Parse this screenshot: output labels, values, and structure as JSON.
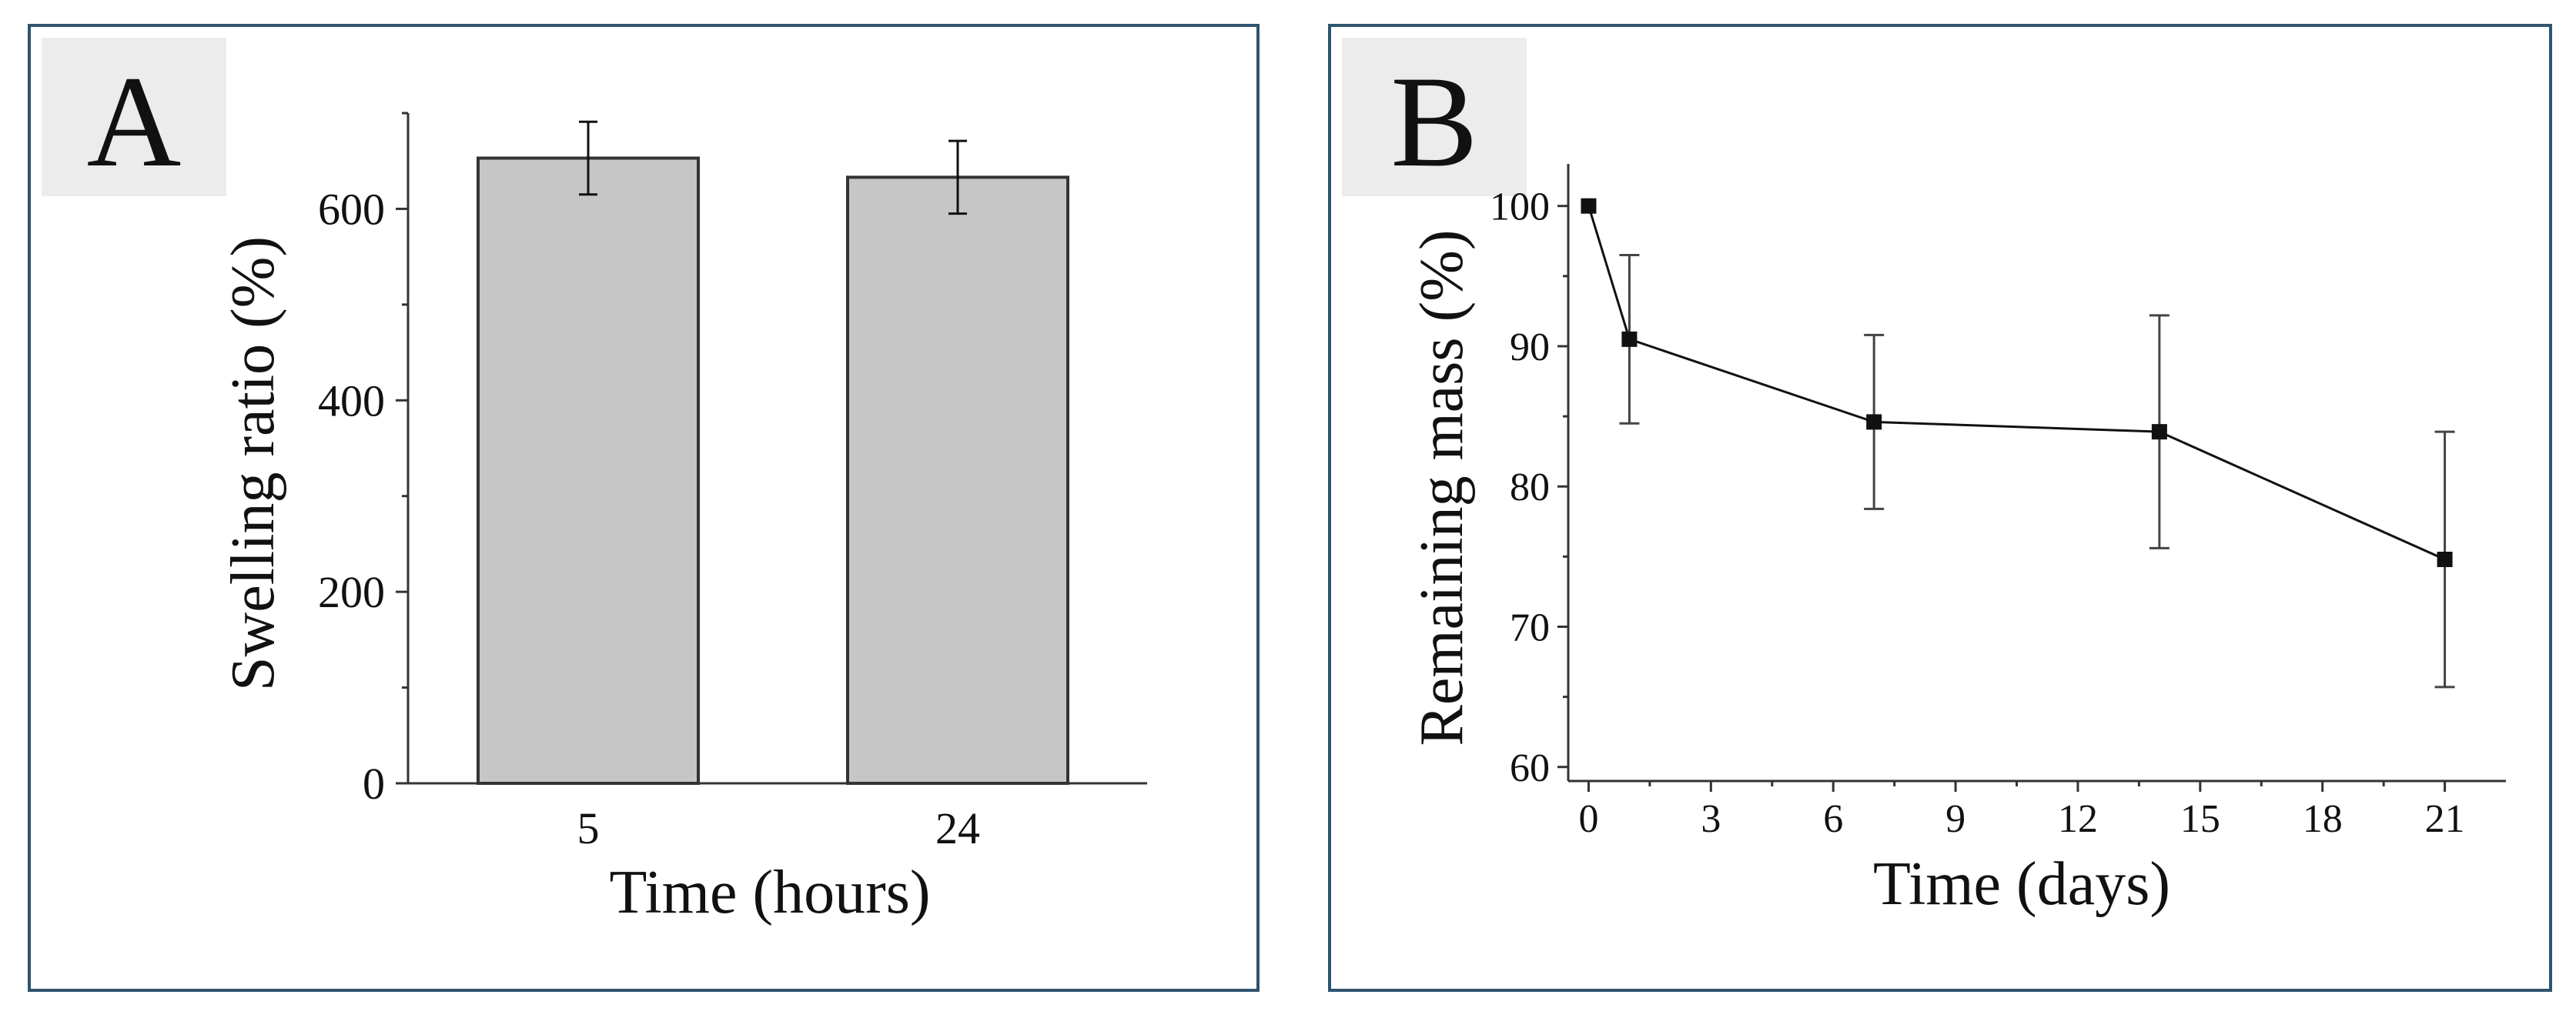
{
  "chart_data": [
    {
      "panel_label": "A",
      "type": "bar",
      "title": "",
      "xlabel": "Time (hours)",
      "ylabel": "Swelling ratio (%)",
      "categories": [
        "5",
        "24"
      ],
      "values": [
        653,
        633
      ],
      "errors": [
        38,
        38
      ],
      "ylim": [
        0,
        700
      ],
      "yticks": [
        0,
        200,
        400,
        600
      ],
      "bar_color": "#c6c6c6",
      "grid": false
    },
    {
      "panel_label": "B",
      "type": "line",
      "title": "",
      "xlabel": "Time (days)",
      "ylabel": "Remaining mass (%)",
      "x": [
        0,
        1,
        7,
        14,
        21
      ],
      "y": [
        100,
        90.5,
        84.6,
        83.9,
        74.8
      ],
      "errors": [
        0,
        6,
        6.2,
        8.3,
        9.1
      ],
      "xlim": [
        -0.5,
        22.5
      ],
      "ylim": [
        59,
        103
      ],
      "xticks": [
        0,
        3,
        6,
        9,
        12,
        15,
        18,
        21
      ],
      "yticks": [
        60,
        70,
        80,
        90,
        100
      ],
      "marker": "square",
      "line_color": "#111111",
      "grid": false
    }
  ],
  "colors": {
    "panel_border": "#2e5470",
    "label_box": "#ececec"
  }
}
